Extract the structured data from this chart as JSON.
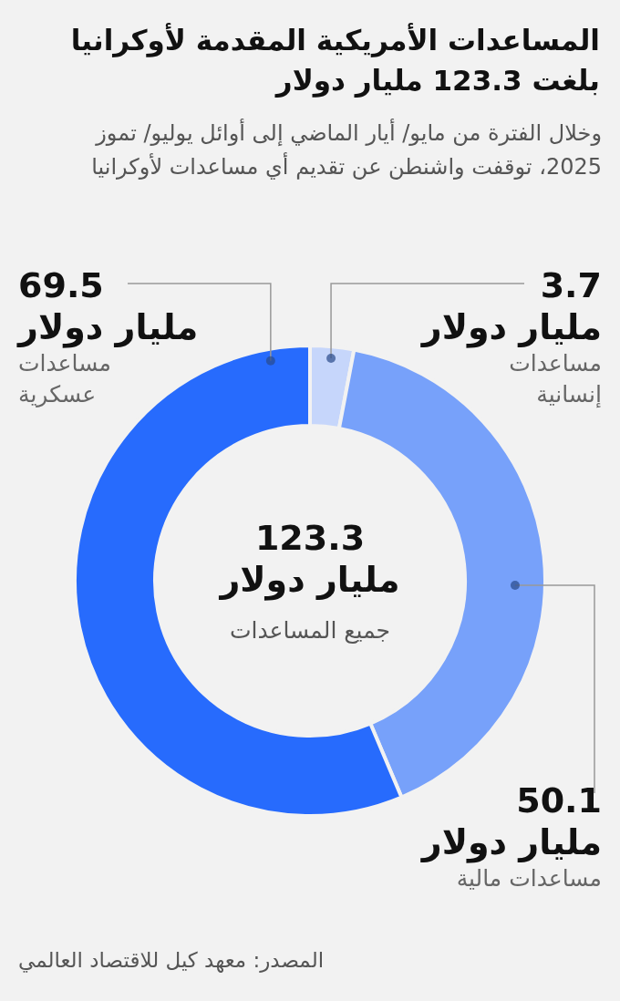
{
  "chart_data": {
    "type": "donut",
    "title": "المساعدات الأمريكية المقدمة لأوكرانيا بلغت 123.3 مليار دولار",
    "subtitle": "وخلال الفترة من مايو/ أيار الماضي إلى أوائل يوليو/ تموز 2025، توقفت واشنطن عن تقديم أي مساعدات لأوكرانيا",
    "categories": [
      "مساعدات إنسانية",
      "مساعدات مالية",
      "مساعدات عسكرية"
    ],
    "values": [
      3.7,
      50.1,
      69.5
    ],
    "colors": [
      "#c6d6fb",
      "#77a1fa",
      "#276bfd"
    ],
    "value_labels": [
      "3.7 مليار دولار",
      "50.1 مليار دولار",
      "69.5 مليار دولار"
    ],
    "annotations": [
      "123.3 مليار دولار",
      "جميع المساعدات",
      "المصدر: معهد كيل للاقتصاد العالمي"
    ]
  }
}
